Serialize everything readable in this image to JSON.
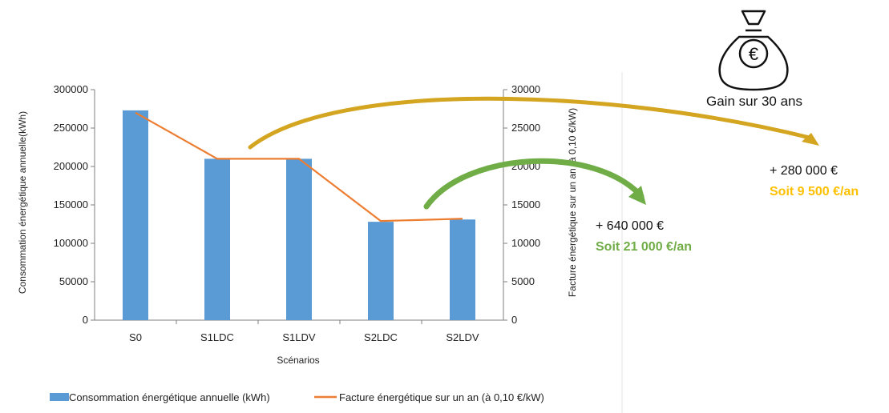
{
  "chart_data": {
    "type": "bar",
    "categories": [
      "S0",
      "S1LDC",
      "S1LDV",
      "S2LDC",
      "S2LDV"
    ],
    "series": [
      {
        "name": "Consommation énergétique annuelle (kWh)",
        "kind": "bar",
        "axis": "left",
        "color": "#5b9bd5",
        "values": [
          273000,
          210000,
          210000,
          128000,
          131000
        ]
      },
      {
        "name": "Facture énergétique sur un an (à 0,10 €/kW)",
        "kind": "line",
        "axis": "right",
        "color": "#ed7d31",
        "values": [
          27000,
          21000,
          21000,
          12900,
          13200
        ]
      }
    ],
    "xlabel": "Scénarios",
    "ylabel": "Consommation énergétique  annuelle(kWh)",
    "y2label": "Facture énergétique  sur un an (à 0,10 €/kW)",
    "ylim": [
      0,
      300000
    ],
    "y2lim": [
      0,
      30000
    ],
    "yticks": [
      "0",
      "50000",
      "100000",
      "150000",
      "200000",
      "250000",
      "300000"
    ],
    "y2ticks": [
      "0",
      "5000",
      "10000",
      "15000",
      "20000",
      "25000",
      "30000"
    ],
    "legend_position": "bottom"
  },
  "annotations": {
    "gain_label": "Gain sur 30 ans",
    "money_bag_symbol": "€",
    "green_amount": "+ 640 000 €",
    "green_yearly": "Soit 21 000 €/an",
    "gold_amount": "+ 280 000 €",
    "gold_yearly": "Soit 9 500 €/an",
    "green_color": "#70ad47",
    "gold_color": "#ffc000"
  }
}
